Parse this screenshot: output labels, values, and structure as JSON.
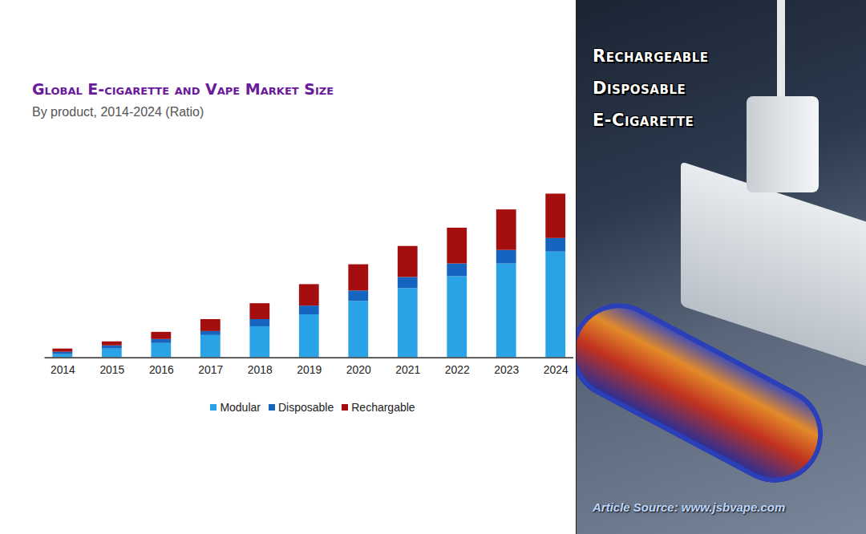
{
  "chart_data": {
    "type": "bar",
    "title": "Global E-cigarette and Vape Market Size",
    "subtitle": "By product, 2014-2024 (Ratio)",
    "categories": [
      "2014",
      "2015",
      "2016",
      "2017",
      "2018",
      "2019",
      "2020",
      "2021",
      "2022",
      "2023",
      "2024"
    ],
    "series": [
      {
        "name": "Modular",
        "color": "#29a3e6",
        "values": [
          4,
          11,
          18,
          28,
          39,
          54,
          71,
          87,
          102,
          118,
          133
        ]
      },
      {
        "name": "Disposable",
        "color": "#1565c0",
        "values": [
          3,
          4,
          5,
          5,
          9,
          11,
          13,
          14,
          16,
          17,
          17
        ]
      },
      {
        "name": "Rechargable",
        "color": "#a50e0e",
        "values": [
          4,
          5,
          9,
          15,
          20,
          27,
          33,
          39,
          45,
          51,
          56
        ]
      }
    ],
    "stacked": true,
    "legend": "bottom",
    "tick_labels": "x",
    "grid": false
  },
  "side_panel": {
    "heading": [
      "Rechargeable",
      "Disposable",
      "E-Cigarette"
    ],
    "source": "Article Source: www.jsbvape.com"
  }
}
